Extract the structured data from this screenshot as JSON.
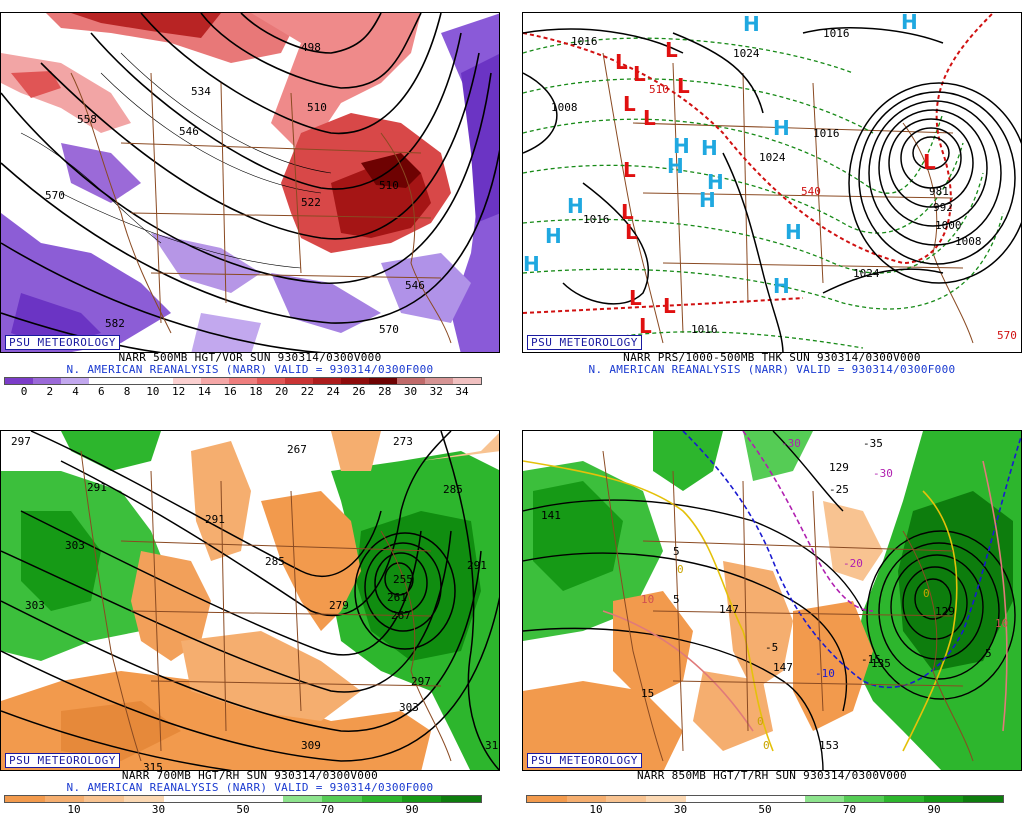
{
  "badge": "PSU METEOROLOGY",
  "panels": [
    {
      "caption1": "NARR 500MB HGT/VOR SUN 930314/0300V000",
      "caption2": "N. AMERICAN REANALYSIS (NARR) VALID = 930314/0300F000",
      "contour_labels": [
        "498",
        "510",
        "522",
        "534",
        "546",
        "558",
        "570",
        "582",
        "570",
        "510",
        "546"
      ],
      "colorbar": {
        "colors": [
          "#7b3cc8",
          "#9b6ad8",
          "#c2a8ee",
          "#ffffff",
          "#ffffff",
          "#ffffff",
          "#fbd0d0",
          "#f5a7a7",
          "#ee7e7e",
          "#e05555",
          "#c93434",
          "#ad1c1c",
          "#8e0b0b",
          "#6e0202",
          "#c06a6a",
          "#d69494",
          "#f0c0c0"
        ],
        "ticks": [
          "0",
          "2",
          "4",
          "6",
          "8",
          "10",
          "12",
          "14",
          "16",
          "18",
          "20",
          "22",
          "24",
          "26",
          "28",
          "30",
          "32",
          "34"
        ]
      }
    },
    {
      "caption1": "NARR PRS/1000-500MB THK SUN 930314/0300V000",
      "caption2": "N. AMERICAN REANALYSIS (NARR) VALID = 930314/0300F000",
      "contour_labels": [
        "1016",
        "1024",
        "1016",
        "1008",
        "1016",
        "1024",
        "1016",
        "1024",
        "1016",
        "981",
        "992",
        "1000",
        "1008",
        "510",
        "540",
        "570"
      ],
      "highs": [
        "H",
        "H",
        "H",
        "H",
        "H",
        "H",
        "H",
        "H",
        "H",
        "H",
        "H",
        "H",
        "H"
      ],
      "lows": [
        "L",
        "L",
        "L",
        "L",
        "L",
        "L",
        "L",
        "L",
        "L",
        "L",
        "L",
        "L",
        "L"
      ]
    },
    {
      "caption1": "NARR 700MB HGT/RH SUN 930314/0300V000",
      "caption2": "N. AMERICAN REANALYSIS (NARR) VALID = 930314/0300F000",
      "contour_labels": [
        "297",
        "267",
        "273",
        "291",
        "303",
        "285",
        "279",
        "255",
        "261",
        "267",
        "285",
        "291",
        "297",
        "303",
        "309",
        "303",
        "315",
        "291",
        "315"
      ],
      "colorbar": {
        "colors": [
          "#f29a4d",
          "#f5ae6f",
          "#f8c391",
          "#fbd8b3",
          "#ffffff",
          "#ffffff",
          "#ffffff",
          "#8de38d",
          "#55cc55",
          "#2db62d",
          "#169a16",
          "#0d7d0d"
        ],
        "ticks": [
          "10",
          "30",
          "50",
          "70",
          "90"
        ]
      }
    },
    {
      "caption1": "NARR 850MB HGT/T/RH SUN 930314/0300V000",
      "caption2": "",
      "contour_labels": [
        "129",
        "141",
        "147",
        "147",
        "135",
        "153",
        "129"
      ],
      "temp_labels": [
        "-30",
        "-35",
        "-30",
        "-25",
        "-20",
        "-15",
        "-10",
        "-5",
        "5",
        "0",
        "5",
        "10",
        "15",
        "0",
        "0",
        "10",
        "5",
        "0"
      ],
      "colorbar": {
        "colors": [
          "#f29a4d",
          "#f5ae6f",
          "#f8c391",
          "#fbd8b3",
          "#ffffff",
          "#ffffff",
          "#ffffff",
          "#8de38d",
          "#55cc55",
          "#2db62d",
          "#169a16",
          "#0d7d0d"
        ],
        "ticks": [
          "10",
          "30",
          "50",
          "70",
          "90"
        ]
      }
    }
  ]
}
